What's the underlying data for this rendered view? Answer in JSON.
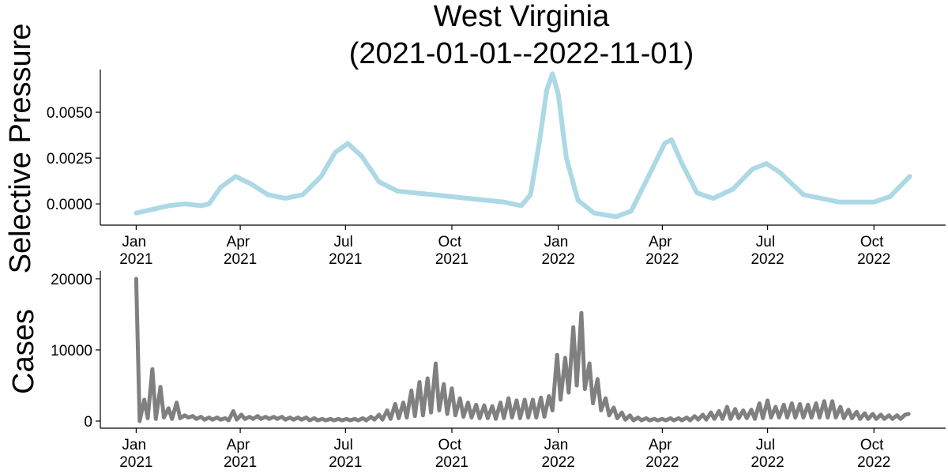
{
  "chart_data": [
    {
      "type": "line",
      "title": [
        "West Virginia",
        "(2021-01-01--2022-11-01)"
      ],
      "ylabel": "Selective Pressure",
      "color": "#add8e6",
      "x": [
        "2021-01-01",
        "2021-01-15",
        "2021-01-29",
        "2021-02-12",
        "2021-02-26",
        "2021-03-05",
        "2021-03-15",
        "2021-03-28",
        "2021-04-10",
        "2021-04-25",
        "2021-05-10",
        "2021-05-25",
        "2021-06-10",
        "2021-06-22",
        "2021-07-03",
        "2021-07-15",
        "2021-07-30",
        "2021-08-15",
        "2021-09-15",
        "2021-10-15",
        "2021-11-15",
        "2021-11-30",
        "2021-12-08",
        "2021-12-16",
        "2021-12-22",
        "2021-12-27",
        "2022-01-01",
        "2022-01-08",
        "2022-01-18",
        "2022-02-01",
        "2022-02-20",
        "2022-03-05",
        "2022-03-20",
        "2022-04-03",
        "2022-04-09",
        "2022-04-18",
        "2022-05-01",
        "2022-05-15",
        "2022-06-01",
        "2022-06-18",
        "2022-06-30",
        "2022-07-12",
        "2022-08-01",
        "2022-09-01",
        "2022-10-01",
        "2022-10-15",
        "2022-11-01"
      ],
      "values": [
        -0.0005,
        -0.0003,
        -0.0001,
        0.0,
        -0.0001,
        0.0,
        0.0009,
        0.0015,
        0.0011,
        0.0005,
        0.0003,
        0.0005,
        0.0015,
        0.0028,
        0.0033,
        0.0026,
        0.0012,
        0.0007,
        0.0005,
        0.0003,
        0.0001,
        -0.0001,
        0.0005,
        0.0035,
        0.0062,
        0.0071,
        0.006,
        0.0025,
        0.0002,
        -0.0005,
        -0.0007,
        -0.0004,
        0.0015,
        0.0033,
        0.0035,
        0.0022,
        0.0006,
        0.0003,
        0.0008,
        0.0019,
        0.0022,
        0.0017,
        0.0005,
        0.0001,
        0.0001,
        0.0004,
        0.0015
      ],
      "xlim": [
        "2020-12-01",
        "2022-12-02"
      ],
      "xticks": [
        {
          "value": "2021-01-01",
          "label": "Jan 2021"
        },
        {
          "value": "2021-04-01",
          "label": "Apr 2021"
        },
        {
          "value": "2021-07-01",
          "label": "Jul 2021"
        },
        {
          "value": "2021-10-01",
          "label": "Oct 2021"
        },
        {
          "value": "2022-01-01",
          "label": "Jan 2022"
        },
        {
          "value": "2022-04-01",
          "label": "Apr 2022"
        },
        {
          "value": "2022-07-01",
          "label": "Jul 2022"
        },
        {
          "value": "2022-10-01",
          "label": "Oct 2022"
        }
      ],
      "ylim": [
        -0.00116,
        0.00733
      ],
      "yticks": [
        {
          "value": 0,
          "label": "0.0000"
        },
        {
          "value": 0.0025,
          "label": "0.0025"
        },
        {
          "value": 0.005,
          "label": "0.0050"
        }
      ]
    },
    {
      "type": "line",
      "ylabel": "Cases",
      "color": "#808080",
      "x": [
        "2021-01-01",
        "2021-01-04",
        "2021-01-08",
        "2021-01-11",
        "2021-01-15",
        "2021-01-18",
        "2021-01-22",
        "2021-01-25",
        "2021-01-29",
        "2021-02-01",
        "2021-02-05",
        "2021-02-08",
        "2021-02-12",
        "2021-02-15",
        "2021-02-19",
        "2021-02-22",
        "2021-02-26",
        "2021-03-01",
        "2021-03-05",
        "2021-03-08",
        "2021-03-12",
        "2021-03-15",
        "2021-03-19",
        "2021-03-22",
        "2021-03-26",
        "2021-03-29",
        "2021-04-02",
        "2021-04-05",
        "2021-04-09",
        "2021-04-12",
        "2021-04-16",
        "2021-04-19",
        "2021-04-23",
        "2021-04-26",
        "2021-04-30",
        "2021-05-03",
        "2021-05-07",
        "2021-05-10",
        "2021-05-14",
        "2021-05-17",
        "2021-05-21",
        "2021-05-24",
        "2021-05-28",
        "2021-05-31",
        "2021-06-04",
        "2021-06-07",
        "2021-06-11",
        "2021-06-14",
        "2021-06-18",
        "2021-06-21",
        "2021-06-25",
        "2021-06-28",
        "2021-07-02",
        "2021-07-05",
        "2021-07-09",
        "2021-07-12",
        "2021-07-16",
        "2021-07-19",
        "2021-07-23",
        "2021-07-26",
        "2021-07-30",
        "2021-08-02",
        "2021-08-06",
        "2021-08-09",
        "2021-08-13",
        "2021-08-16",
        "2021-08-20",
        "2021-08-23",
        "2021-08-27",
        "2021-08-30",
        "2021-09-03",
        "2021-09-06",
        "2021-09-10",
        "2021-09-13",
        "2021-09-17",
        "2021-09-20",
        "2021-09-24",
        "2021-09-27",
        "2021-10-01",
        "2021-10-04",
        "2021-10-08",
        "2021-10-11",
        "2021-10-15",
        "2021-10-18",
        "2021-10-22",
        "2021-10-25",
        "2021-10-29",
        "2021-11-01",
        "2021-11-05",
        "2021-11-08",
        "2021-11-12",
        "2021-11-15",
        "2021-11-19",
        "2021-11-22",
        "2021-11-26",
        "2021-11-29",
        "2021-12-03",
        "2021-12-06",
        "2021-12-10",
        "2021-12-13",
        "2021-12-17",
        "2021-12-20",
        "2021-12-24",
        "2021-12-27",
        "2021-12-31",
        "2022-01-03",
        "2022-01-07",
        "2022-01-10",
        "2022-01-14",
        "2022-01-17",
        "2022-01-21",
        "2022-01-24",
        "2022-01-28",
        "2022-01-31",
        "2022-02-04",
        "2022-02-07",
        "2022-02-11",
        "2022-02-14",
        "2022-02-18",
        "2022-02-21",
        "2022-02-25",
        "2022-02-28",
        "2022-03-04",
        "2022-03-07",
        "2022-03-11",
        "2022-03-14",
        "2022-03-18",
        "2022-03-21",
        "2022-03-25",
        "2022-03-28",
        "2022-04-01",
        "2022-04-04",
        "2022-04-08",
        "2022-04-11",
        "2022-04-15",
        "2022-04-18",
        "2022-04-22",
        "2022-04-25",
        "2022-04-29",
        "2022-05-02",
        "2022-05-06",
        "2022-05-09",
        "2022-05-13",
        "2022-05-16",
        "2022-05-20",
        "2022-05-23",
        "2022-05-27",
        "2022-05-30",
        "2022-06-03",
        "2022-06-06",
        "2022-06-10",
        "2022-06-13",
        "2022-06-17",
        "2022-06-20",
        "2022-06-24",
        "2022-06-27",
        "2022-07-01",
        "2022-07-04",
        "2022-07-08",
        "2022-07-11",
        "2022-07-15",
        "2022-07-18",
        "2022-07-22",
        "2022-07-25",
        "2022-07-29",
        "2022-08-01",
        "2022-08-05",
        "2022-08-08",
        "2022-08-12",
        "2022-08-15",
        "2022-08-19",
        "2022-08-22",
        "2022-08-26",
        "2022-08-29",
        "2022-09-02",
        "2022-09-05",
        "2022-09-09",
        "2022-09-12",
        "2022-09-16",
        "2022-09-19",
        "2022-09-23",
        "2022-09-26",
        "2022-09-30",
        "2022-10-03",
        "2022-10-07",
        "2022-10-10",
        "2022-10-14",
        "2022-10-17",
        "2022-10-21",
        "2022-10-24",
        "2022-10-28",
        "2022-10-31"
      ],
      "values": [
        20000,
        0,
        3000,
        400,
        7300,
        300,
        4800,
        500,
        1800,
        300,
        2600,
        400,
        800,
        500,
        700,
        300,
        600,
        200,
        500,
        200,
        500,
        200,
        400,
        100,
        1400,
        200,
        900,
        300,
        600,
        300,
        700,
        300,
        600,
        300,
        600,
        300,
        600,
        200,
        500,
        200,
        500,
        200,
        500,
        100,
        400,
        100,
        300,
        100,
        300,
        100,
        300,
        100,
        300,
        100,
        300,
        100,
        400,
        100,
        600,
        200,
        900,
        200,
        1500,
        300,
        2400,
        400,
        2600,
        500,
        4300,
        700,
        5500,
        800,
        6000,
        1200,
        8100,
        1500,
        5200,
        1000,
        4600,
        800,
        3200,
        600,
        2600,
        500,
        2300,
        400,
        2200,
        400,
        2100,
        300,
        2600,
        400,
        3200,
        500,
        2900,
        400,
        3000,
        500,
        3000,
        500,
        3300,
        600,
        3500,
        1500,
        9300,
        3000,
        8900,
        4000,
        13200,
        5000,
        15200,
        4500,
        8100,
        2500,
        5900,
        1500,
        3200,
        800,
        1900,
        400,
        1200,
        200,
        800,
        100,
        500,
        100,
        400,
        100,
        300,
        100,
        300,
        100,
        400,
        100,
        400,
        100,
        500,
        100,
        700,
        200,
        900,
        200,
        1200,
        300,
        1400,
        300,
        2000,
        300,
        1700,
        400,
        1500,
        400,
        1600,
        300,
        2500,
        400,
        2900,
        500,
        2000,
        500,
        2300,
        500,
        2500,
        500,
        2400,
        500,
        2300,
        500,
        2500,
        500,
        2800,
        500,
        2800,
        500,
        2000,
        400,
        1600,
        400,
        1300,
        300,
        1100,
        300,
        1000,
        300,
        900,
        300,
        800,
        300,
        800,
        300,
        900,
        1000
      ],
      "xlim": [
        "2020-12-01",
        "2022-12-02"
      ],
      "xticks": [
        {
          "value": "2021-01-01",
          "label": "Jan 2021"
        },
        {
          "value": "2021-04-01",
          "label": "Apr 2021"
        },
        {
          "value": "2021-07-01",
          "label": "Jul 2021"
        },
        {
          "value": "2021-10-01",
          "label": "Oct 2021"
        },
        {
          "value": "2022-01-01",
          "label": "Jan 2022"
        },
        {
          "value": "2022-04-01",
          "label": "Apr 2022"
        },
        {
          "value": "2022-07-01",
          "label": "Jul 2022"
        },
        {
          "value": "2022-10-01",
          "label": "Oct 2022"
        }
      ],
      "ylim": [
        -1000,
        21100
      ],
      "yticks": [
        0,
        10000,
        20000
      ]
    }
  ]
}
